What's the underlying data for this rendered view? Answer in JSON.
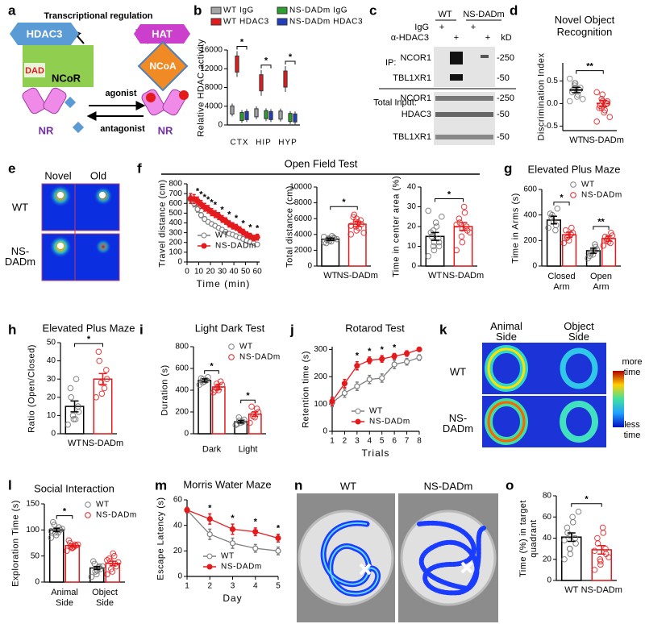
{
  "figure": {
    "panel_labels": [
      "a",
      "b",
      "c",
      "d",
      "e",
      "f",
      "g",
      "h",
      "i",
      "j",
      "k",
      "l",
      "m",
      "n",
      "o"
    ],
    "open_field_title": "Open Field Test"
  },
  "schematic": {
    "title": "Transcriptional regulation",
    "hdac3": "HDAC3",
    "dad": "DAD",
    "ncor": "NCoR",
    "hat": "HAT",
    "ncoa": "NCoA",
    "nr": [
      "NR",
      "NR"
    ],
    "agonist": "agonist",
    "antagonist": "antagonist"
  },
  "blot": {
    "genotypes": [
      "WT",
      "NS-DADm"
    ],
    "treatments": [
      {
        "label": "IgG",
        "marks": [
          "+",
          "+"
        ]
      },
      {
        "label": "α-HDAC3",
        "marks": [
          "+",
          "+"
        ]
      }
    ],
    "kd": "kD",
    "ip": "IP:",
    "ip_rows": [
      "NCOR1",
      "TBL1XR1"
    ],
    "input": "Total Input:",
    "input_rows": [
      "NCOR1",
      "HDAC3",
      "TBL1XR1"
    ],
    "markers": [
      "-250",
      "-50",
      "-250",
      "-50",
      "-50"
    ]
  },
  "heatmap_e": {
    "columns": [
      "Novel",
      "Old"
    ],
    "rows": [
      "WT",
      "NS-DADm"
    ]
  },
  "heatmap_k": {
    "columns": [
      "Animal Side",
      "Object Side"
    ],
    "rows": [
      "WT",
      "NS-DADm"
    ],
    "scale": [
      "more time",
      "less time"
    ]
  },
  "swim_n": {
    "columns": [
      "WT",
      "NS-DADm"
    ]
  },
  "chart_data": [
    {
      "type": "box",
      "ylabel": "Relative HDAC activity",
      "categories": [
        "CTX",
        "HIP",
        "HYP"
      ],
      "series": [
        {
          "name": "WT IgG",
          "color": "#a6a6a6",
          "values": [
            3200,
            2600,
            2100
          ]
        },
        {
          "name": "WT HDAC3",
          "color": "#e41a1c",
          "values": [
            13000,
            9000,
            9800
          ]
        },
        {
          "name": "NS-DADm IgG",
          "color": "#2ca02c",
          "values": [
            1800,
            2200,
            1600
          ]
        },
        {
          "name": "NS-DADm HDAC3",
          "color": "#1f3fbf",
          "values": [
            2000,
            2000,
            1500
          ]
        }
      ],
      "ylim": [
        0,
        16000
      ],
      "yticks": [
        0,
        4000,
        8000,
        12000,
        16000
      ],
      "annotations": [
        "*",
        "*",
        "*"
      ]
    },
    {
      "type": "dot",
      "title": "Novel Object Recognition",
      "ylabel": "Discrimination Index",
      "categories": [
        "WT",
        "NS-DADm"
      ],
      "colors": [
        "#7f7f7f",
        "#e41a1c"
      ],
      "values": [
        0.3,
        0.0
      ],
      "errors": [
        0.06,
        0.07
      ],
      "points": [
        [
          0.55,
          0.45,
          0.4,
          0.35,
          0.3,
          0.3,
          0.25,
          0.2,
          0.15,
          0.1,
          0.05,
          0.35,
          0.45
        ],
        [
          0.25,
          0.2,
          0.1,
          0.05,
          0.0,
          -0.05,
          -0.1,
          -0.15,
          -0.2,
          -0.3,
          -0.4,
          0.05,
          -0.1,
          0.0
        ]
      ],
      "ylim": [
        -0.6,
        0.9
      ],
      "yticks": [
        -0.5,
        {
          "value": 0,
          "label": "0.0"
        },
        0.5
      ],
      "annotations": [
        "**"
      ]
    },
    {
      "type": "line",
      "ylabel": "Travel distance (cm)",
      "xlabel": "Time (min)",
      "x": [
        3,
        6,
        9,
        12,
        15,
        18,
        21,
        24,
        27,
        30,
        33,
        36,
        39,
        42,
        45,
        48,
        51,
        54,
        57,
        60
      ],
      "series": [
        {
          "name": "WT",
          "color": "#7f7f7f",
          "filled": false,
          "values": [
            640,
            600,
            540,
            480,
            440,
            410,
            390,
            370,
            350,
            330,
            310,
            290,
            280,
            265,
            250,
            235,
            220,
            205,
            195,
            180
          ],
          "errors": [
            40,
            35,
            30,
            25,
            22,
            20,
            20,
            18,
            18,
            18,
            17,
            17,
            16,
            16,
            15,
            15,
            15,
            15,
            15,
            15
          ]
        },
        {
          "name": "NS-DADm",
          "color": "#e41a1c",
          "filled": true,
          "values": [
            650,
            645,
            625,
            590,
            560,
            540,
            510,
            490,
            470,
            440,
            420,
            390,
            370,
            355,
            330,
            305,
            280,
            265,
            245,
            255
          ],
          "errors": [
            50,
            45,
            40,
            40,
            40,
            38,
            36,
            35,
            35,
            34,
            33,
            32,
            32,
            30,
            30,
            30,
            28,
            28,
            28,
            30
          ]
        }
      ],
      "xlim": [
        0,
        62
      ],
      "xticks": [
        0,
        10,
        20,
        30,
        40,
        50,
        60
      ],
      "ylim": [
        0,
        800
      ],
      "yticks": [
        0,
        100,
        200,
        300,
        400,
        500,
        600,
        700,
        800
      ],
      "annotations": [
        null,
        null,
        "*",
        "*",
        "*",
        "*",
        "*",
        "*",
        null,
        "*",
        null,
        "*",
        null,
        "*",
        null,
        "*",
        null,
        "*",
        null,
        "*"
      ]
    },
    {
      "type": "bar",
      "ylabel": "Total distance (cm)",
      "categories": [
        "WT",
        "NS-DADm"
      ],
      "colors": [
        "#000000",
        "#e41a1c"
      ],
      "values": [
        3400,
        5300
      ],
      "errors": [
        150,
        300
      ],
      "points": [
        [
          3000,
          3200,
          3400,
          3500,
          3600,
          3300,
          2900,
          3800,
          3100,
          3400,
          3700,
          3200,
          3500
        ],
        [
          4000,
          4500,
          5000,
          5300,
          5800,
          6500,
          6200,
          4800,
          5500,
          4200,
          5100,
          6000,
          5600
        ]
      ],
      "ylim": [
        0,
        10000
      ],
      "yticks": [
        0,
        2000,
        4000,
        6000,
        8000,
        10000
      ],
      "annotations": [
        "*"
      ]
    },
    {
      "type": "bar",
      "ylabel": "Time in center area (%)",
      "categories": [
        "WT",
        "NS-DADm"
      ],
      "colors": [
        "#000000",
        "#e41a1c"
      ],
      "values": [
        15,
        20
      ],
      "errors": [
        2,
        2
      ],
      "points": [
        [
          5,
          8,
          10,
          12,
          14,
          15,
          17,
          20,
          22,
          25,
          28,
          12,
          18,
          10
        ],
        [
          8,
          12,
          15,
          18,
          20,
          22,
          24,
          27,
          30,
          17,
          21,
          19
        ]
      ],
      "ylim": [
        0,
        40
      ],
      "yticks": [
        0,
        10,
        20,
        30,
        40
      ],
      "annotations": [
        "*"
      ]
    },
    {
      "type": "grouped_bar",
      "title": "Elevated Plus Maze",
      "ylabel": "Time in Arms (s)",
      "categories": [
        "Closed Arm",
        "Open Arm"
      ],
      "series": [
        {
          "name": "WT",
          "color": "#000000",
          "values": [
            360,
            120
          ],
          "errors": [
            30,
            20
          ],
          "points": [
            [
              300,
              350,
              400,
              450,
              320,
              380,
              410,
              280
            ],
            [
              60,
              90,
              110,
              130,
              150,
              100,
              80,
              170
            ]
          ]
        },
        {
          "name": "NS-DADm",
          "color": "#e41a1c",
          "values": [
            245,
            215
          ],
          "errors": [
            20,
            20
          ],
          "points": [
            [
              180,
              200,
              230,
              260,
              300,
              220,
              280,
              250
            ],
            [
              160,
              190,
              210,
              240,
              260,
              200,
              230,
              180
            ]
          ]
        }
      ],
      "ylim": [
        0,
        600
      ],
      "yticks": [
        0,
        200,
        400,
        600
      ],
      "annotations": [
        "*",
        "**"
      ]
    },
    {
      "type": "bar",
      "title": "Elevated Plus Maze",
      "ylabel": "Ratio (Open/Closed)",
      "categories": [
        "WT",
        "NS-DADm"
      ],
      "colors": [
        "#000000",
        "#e41a1c"
      ],
      "values": [
        15,
        30
      ],
      "errors": [
        3,
        3
      ],
      "points": [
        [
          5,
          8,
          10,
          12,
          15,
          20,
          25,
          30,
          8
        ],
        [
          20,
          22,
          28,
          30,
          35,
          40,
          45,
          25
        ]
      ],
      "ylim": [
        0,
        50
      ],
      "yticks": [
        0,
        10,
        20,
        30,
        40,
        50
      ],
      "annotations": [
        "*"
      ]
    },
    {
      "type": "grouped_bar",
      "title": "Light Dark Test",
      "ylabel": "Duration (s)",
      "categories": [
        "Dark",
        "Light"
      ],
      "series": [
        {
          "name": "WT",
          "color": "#000000",
          "values": [
            490,
            110
          ],
          "errors": [
            15,
            12
          ],
          "points": [
            [
              450,
              480,
              500,
              520,
              490,
              470,
              510
            ],
            [
              80,
              100,
              120,
              130,
              110,
              150,
              90
            ]
          ]
        },
        {
          "name": "NS-DADm",
          "color": "#e41a1c",
          "values": [
            430,
            180
          ],
          "errors": [
            25,
            20
          ],
          "points": [
            [
              380,
              400,
              420,
              450,
              480,
              460,
              400
            ],
            [
              100,
              150,
              180,
              200,
              230,
              160,
              250
            ]
          ]
        }
      ],
      "ylim": [
        0,
        800
      ],
      "yticks": [
        0,
        200,
        400,
        600,
        800
      ],
      "annotations": [
        "*",
        "*"
      ]
    },
    {
      "type": "line",
      "title": "Rotarod Test",
      "ylabel": "Retention time (s)",
      "xlabel": "Trials",
      "x": [
        1,
        2,
        3,
        4,
        5,
        6,
        7,
        8
      ],
      "series": [
        {
          "name": "WT",
          "color": "#7f7f7f",
          "filled": false,
          "values": [
            105,
            140,
            165,
            190,
            195,
            245,
            255,
            270
          ],
          "errors": [
            15,
            15,
            15,
            15,
            15,
            15,
            12,
            10
          ]
        },
        {
          "name": "NS-DADm",
          "color": "#e41a1c",
          "filled": true,
          "values": [
            110,
            175,
            240,
            260,
            265,
            275,
            285,
            300
          ],
          "errors": [
            15,
            15,
            15,
            12,
            12,
            10,
            10,
            5
          ]
        }
      ],
      "xlim": [
        1,
        8
      ],
      "xticks": [
        1,
        2,
        3,
        4,
        5,
        6,
        7,
        8
      ],
      "ylim": [
        0,
        310
      ],
      "yticks": [
        0,
        100,
        200,
        300
      ],
      "annotations": [
        null,
        null,
        "*",
        "*",
        "*",
        "*",
        null,
        null
      ]
    },
    {
      "type": "grouped_bar",
      "title": "Social Interaction",
      "ylabel": "Exploration Time (s)",
      "categories": [
        "Animal Side",
        "Object Side"
      ],
      "series": [
        {
          "name": "WT",
          "color": "#000000",
          "values": [
            100,
            27
          ],
          "errors": [
            3,
            3
          ],
          "points": [
            [
              85,
              90,
              95,
              100,
              105,
              110,
              115,
              95,
              100,
              102,
              98
            ],
            [
              10,
              15,
              20,
              25,
              30,
              35,
              40,
              28,
              22,
              30
            ]
          ]
        },
        {
          "name": "NS-DADm",
          "color": "#e41a1c",
          "values": [
            70,
            36
          ],
          "errors": [
            3,
            4
          ],
          "points": [
            [
              60,
              65,
              68,
              70,
              72,
              75,
              80,
              68,
              66,
              72
            ],
            [
              15,
              20,
              25,
              30,
              35,
              40,
              45,
              50,
              55,
              38,
              42
            ]
          ]
        }
      ],
      "ylim": [
        0,
        150
      ],
      "yticks": [
        0,
        50,
        100,
        150
      ],
      "annotations": [
        "*",
        null
      ]
    },
    {
      "type": "line",
      "title": "Morris Water Maze",
      "ylabel": "Escape Latency (s)",
      "xlabel": "Day",
      "x": [
        1,
        2,
        3,
        4,
        5
      ],
      "series": [
        {
          "name": "WT",
          "color": "#7f7f7f",
          "filled": false,
          "values": [
            52,
            33,
            26,
            22,
            20
          ],
          "errors": [
            2,
            4,
            4,
            3,
            3
          ]
        },
        {
          "name": "NS-DADm",
          "color": "#e41a1c",
          "filled": true,
          "values": [
            52,
            45,
            37,
            35,
            30
          ],
          "errors": [
            2,
            4,
            4,
            3,
            3
          ]
        }
      ],
      "xlim": [
        1,
        5
      ],
      "xticks": [
        1,
        2,
        3,
        4,
        5
      ],
      "ylim": [
        0,
        60
      ],
      "yticks": [
        0,
        20,
        40,
        60
      ],
      "annotations": [
        null,
        "*",
        "*",
        "*",
        "*"
      ]
    },
    {
      "type": "bar",
      "ylabel": "Time (%) in target quadrant",
      "categories": [
        "WT",
        "NS-DADm"
      ],
      "colors": [
        "#000000",
        "#e41a1c"
      ],
      "values": [
        41,
        29
      ],
      "errors": [
        4,
        4
      ],
      "points": [
        [
          20,
          25,
          30,
          35,
          40,
          45,
          50,
          55,
          60,
          65,
          38,
          42,
          30
        ],
        [
          10,
          15,
          20,
          25,
          30,
          35,
          40,
          45,
          50,
          22,
          28,
          18
        ]
      ],
      "ylim": [
        0,
        80
      ],
      "yticks": [
        0,
        20,
        40,
        60,
        80
      ],
      "annotations": [
        "*"
      ]
    }
  ]
}
